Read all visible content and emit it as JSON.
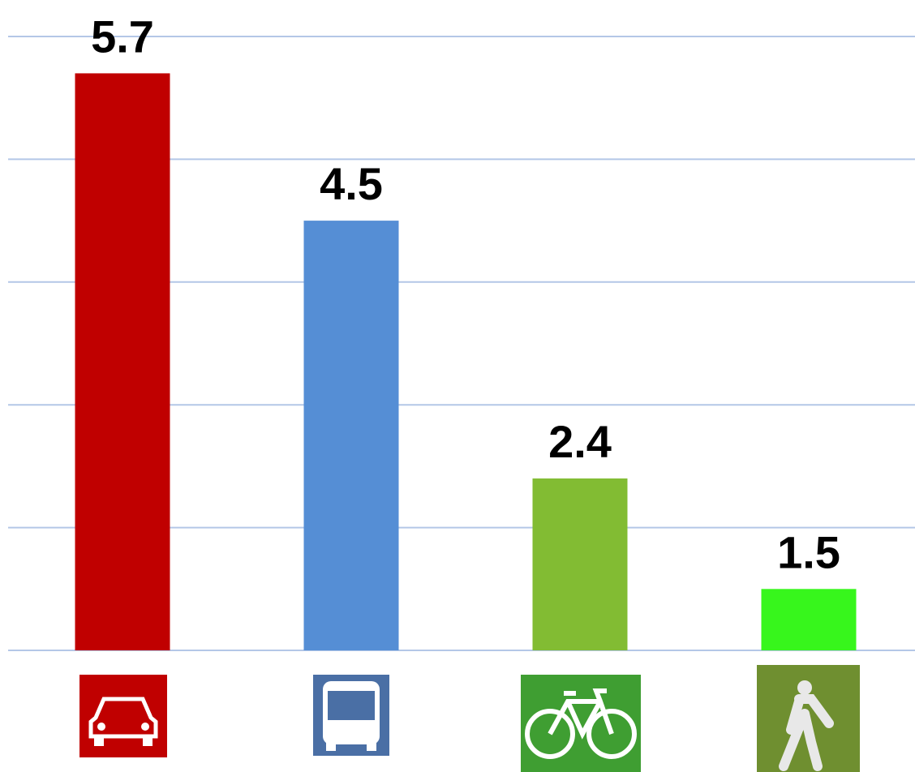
{
  "chart_data": {
    "type": "bar",
    "categories": [
      null,
      null,
      null,
      null
    ],
    "values": [
      5.7,
      4.5,
      2.4,
      1.5
    ],
    "colors": [
      "#c00000",
      "#558ed5",
      "#82bc33",
      "#37f61c"
    ],
    "ylim": [
      1,
      6
    ],
    "yticks": [
      1,
      2,
      3,
      4,
      5,
      6
    ],
    "grid": true
  }
}
